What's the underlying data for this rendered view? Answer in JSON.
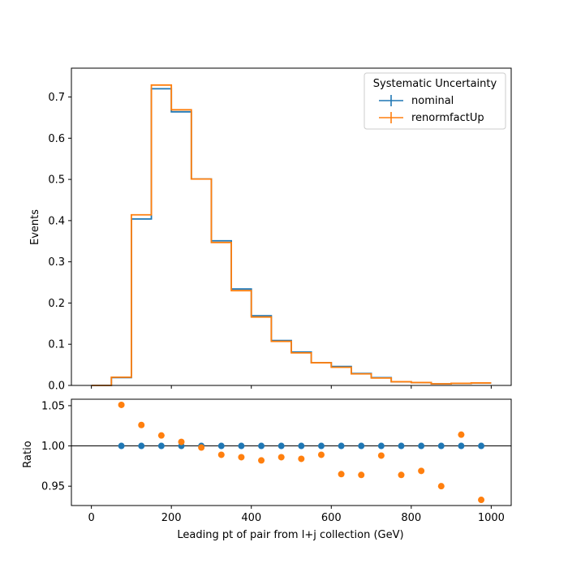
{
  "chart_data": [
    {
      "type": "line",
      "subtype": "step-histogram",
      "xlabel": "",
      "ylabel": "Events",
      "xlim": [
        -50,
        1050
      ],
      "ylim": [
        0,
        0.77
      ],
      "xticks": [
        0,
        200,
        400,
        600,
        800,
        1000
      ],
      "yticks": [
        "0.0",
        "0.1",
        "0.2",
        "0.3",
        "0.4",
        "0.5",
        "0.6",
        "0.7"
      ],
      "bin_edges": [
        0,
        50,
        100,
        150,
        200,
        250,
        300,
        350,
        400,
        450,
        500,
        550,
        600,
        650,
        700,
        750,
        800,
        850,
        900,
        950,
        1000
      ],
      "legend": {
        "title": "Systematic Uncertainty",
        "placement": "top-right"
      },
      "series": [
        {
          "name": "nominal",
          "color": "#1f77b4",
          "values": [
            0.0,
            0.019,
            0.404,
            0.72,
            0.664,
            0.501,
            0.351,
            0.234,
            0.169,
            0.109,
            0.081,
            0.055,
            0.046,
            0.029,
            0.019,
            0.009,
            0.007,
            0.004,
            0.005,
            0.006
          ]
        },
        {
          "name": "renormfactUp",
          "color": "#ff7f0e",
          "values": [
            0.0,
            0.02,
            0.414,
            0.729,
            0.669,
            0.501,
            0.347,
            0.23,
            0.166,
            0.107,
            0.079,
            0.055,
            0.044,
            0.028,
            0.018,
            0.009,
            0.007,
            0.004,
            0.005,
            0.006
          ]
        }
      ]
    },
    {
      "type": "scatter",
      "xlabel": "Leading pt of pair from l+j collection (GeV)",
      "ylabel": "Ratio",
      "xlim": [
        -50,
        1050
      ],
      "ylim": [
        0.926,
        1.058
      ],
      "xticks": [
        "0",
        "200",
        "400",
        "600",
        "800",
        "1000"
      ],
      "yticks": [
        "0.95",
        "1.00",
        "1.05"
      ],
      "reference_line": 1.0,
      "x": [
        75,
        125,
        175,
        225,
        275,
        325,
        375,
        425,
        475,
        525,
        575,
        625,
        675,
        725,
        775,
        825,
        875,
        925,
        975
      ],
      "series": [
        {
          "name": "nominal",
          "color": "#1f77b4",
          "values": [
            1.0,
            1.0,
            1.0,
            1.0,
            1.0,
            1.0,
            1.0,
            1.0,
            1.0,
            1.0,
            1.0,
            1.0,
            1.0,
            1.0,
            1.0,
            1.0,
            1.0,
            1.0,
            1.0
          ]
        },
        {
          "name": "renormfactUp",
          "color": "#ff7f0e",
          "values": [
            1.051,
            1.026,
            1.013,
            1.005,
            0.998,
            0.989,
            0.986,
            0.982,
            0.986,
            0.984,
            0.989,
            0.965,
            0.964,
            0.988,
            0.964,
            0.969,
            0.95,
            1.014,
            0.933
          ]
        }
      ]
    }
  ]
}
